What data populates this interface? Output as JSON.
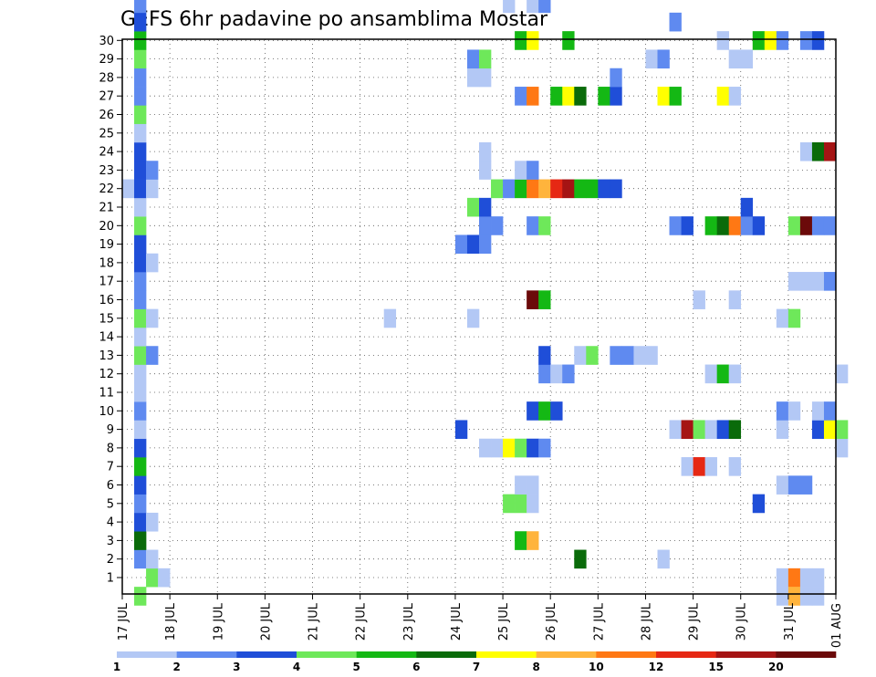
{
  "chart_data": {
    "type": "heatmap",
    "title": "GEFS 6hr padavine po ansamblima Mostar",
    "y_categories": [
      "1",
      "2",
      "3",
      "4",
      "5",
      "6",
      "7",
      "8",
      "9",
      "10",
      "11",
      "12",
      "13",
      "14",
      "15",
      "16",
      "17",
      "18",
      "19",
      "20",
      "21",
      "22",
      "23",
      "24",
      "25",
      "26",
      "27",
      "28",
      "29",
      "30"
    ],
    "x_tick_labels": [
      "17 JUL",
      "18 JUL",
      "19 JUL",
      "20 JUL",
      "21 JUL",
      "22 JUL",
      "23 JUL",
      "24 JUL",
      "25 JUL",
      "26 JUL",
      "27 JUL",
      "28 JUL",
      "29 JUL",
      "30 JUL",
      "31 JUL",
      "01 AUG"
    ],
    "x_range_days": [
      0,
      15
    ],
    "time_step_days": 0.25,
    "grid": "dotted",
    "colorbar": {
      "placement": "bottom",
      "levels": [
        "1",
        "2",
        "3",
        "4",
        "5",
        "6",
        "7",
        "8",
        "10",
        "12",
        "15",
        "20"
      ],
      "colors": [
        "#b3c8f5",
        "#5f8af0",
        "#1f4ed8",
        "#6ee85a",
        "#14b814",
        "#0a6b0a",
        "#ffff00",
        "#ffb43c",
        "#ff7814",
        "#e62814",
        "#a51414",
        "#6b0a0a"
      ]
    },
    "cells": [
      {
        "m": 0,
        "t": 0.5,
        "c": 4
      },
      {
        "m": 0,
        "t": 0.75,
        "c": 1
      },
      {
        "m": 0,
        "t": 13.75,
        "c": 1
      },
      {
        "m": 0,
        "t": 14,
        "c": 9
      },
      {
        "m": 0,
        "t": 14.25,
        "c": 1
      },
      {
        "m": 0,
        "t": 14.5,
        "c": 1
      },
      {
        "m": 1,
        "t": 0.25,
        "c": 2
      },
      {
        "m": 1,
        "t": 0.5,
        "c": 1
      },
      {
        "m": 1,
        "t": 9.5,
        "c": 6
      },
      {
        "m": 1,
        "t": 11.25,
        "c": 1
      },
      {
        "m": 2,
        "t": 0.25,
        "c": 6
      },
      {
        "m": 2,
        "t": 8.25,
        "c": 5
      },
      {
        "m": 2,
        "t": 8.5,
        "c": 8
      },
      {
        "m": 3,
        "t": 0.25,
        "c": 3
      },
      {
        "m": 3,
        "t": 0.5,
        "c": 1
      },
      {
        "m": 4,
        "t": 0.25,
        "c": 2
      },
      {
        "m": 4,
        "t": 8,
        "c": 4
      },
      {
        "m": 4,
        "t": 8.25,
        "c": 4
      },
      {
        "m": 4,
        "t": 8.5,
        "c": 1
      },
      {
        "m": 4,
        "t": 13.25,
        "c": 3
      },
      {
        "m": 5,
        "t": 0.25,
        "c": 3
      },
      {
        "m": 5,
        "t": 8.25,
        "c": 1
      },
      {
        "m": 5,
        "t": 8.5,
        "c": 1
      },
      {
        "m": 5,
        "t": 13.75,
        "c": 1
      },
      {
        "m": 5,
        "t": 14,
        "c": 2
      },
      {
        "m": 5,
        "t": 14.25,
        "c": 2
      },
      {
        "m": 6,
        "t": 0.25,
        "c": 5
      },
      {
        "m": 6,
        "t": 11.75,
        "c": 1
      },
      {
        "m": 6,
        "t": 12,
        "c": 10
      },
      {
        "m": 6,
        "t": 12.25,
        "c": 1
      },
      {
        "m": 6,
        "t": 12.75,
        "c": 1
      },
      {
        "m": 7,
        "t": 0.25,
        "c": 3
      },
      {
        "m": 7,
        "t": 7.5,
        "c": 1
      },
      {
        "m": 7,
        "t": 7.75,
        "c": 1
      },
      {
        "m": 7,
        "t": 8,
        "c": 7
      },
      {
        "m": 7,
        "t": 8.25,
        "c": 4
      },
      {
        "m": 7,
        "t": 8.5,
        "c": 3
      },
      {
        "m": 7,
        "t": 8.75,
        "c": 2
      },
      {
        "m": 7,
        "t": 15,
        "c": 1
      },
      {
        "m": 8,
        "t": 0.25,
        "c": 1
      },
      {
        "m": 8,
        "t": 7,
        "c": 3
      },
      {
        "m": 8,
        "t": 11.5,
        "c": 1
      },
      {
        "m": 8,
        "t": 11.75,
        "c": 11
      },
      {
        "m": 8,
        "t": 12,
        "c": 4
      },
      {
        "m": 8,
        "t": 12.25,
        "c": 1
      },
      {
        "m": 8,
        "t": 12.5,
        "c": 3
      },
      {
        "m": 8,
        "t": 12.75,
        "c": 6
      },
      {
        "m": 8,
        "t": 13.75,
        "c": 1
      },
      {
        "m": 8,
        "t": 14.5,
        "c": 3
      },
      {
        "m": 8,
        "t": 14.75,
        "c": 7
      },
      {
        "m": 8,
        "t": 15,
        "c": 4
      },
      {
        "m": 9,
        "t": 0.25,
        "c": 2
      },
      {
        "m": 9,
        "t": 8.5,
        "c": 3
      },
      {
        "m": 9,
        "t": 8.75,
        "c": 5
      },
      {
        "m": 9,
        "t": 9,
        "c": 3
      },
      {
        "m": 9,
        "t": 13.75,
        "c": 2
      },
      {
        "m": 9,
        "t": 14,
        "c": 1
      },
      {
        "m": 9,
        "t": 14.5,
        "c": 1
      },
      {
        "m": 9,
        "t": 14.75,
        "c": 2
      },
      {
        "m": 10,
        "t": 0.25,
        "c": 1
      },
      {
        "m": 11,
        "t": 0.25,
        "c": 1
      },
      {
        "m": 11,
        "t": 8.75,
        "c": 2
      },
      {
        "m": 11,
        "t": 9,
        "c": 1
      },
      {
        "m": 11,
        "t": 9.25,
        "c": 2
      },
      {
        "m": 11,
        "t": 12.25,
        "c": 1
      },
      {
        "m": 11,
        "t": 12.5,
        "c": 5
      },
      {
        "m": 11,
        "t": 12.75,
        "c": 1
      },
      {
        "m": 11,
        "t": 15,
        "c": 1
      },
      {
        "m": 12,
        "t": 0.25,
        "c": 4
      },
      {
        "m": 12,
        "t": 0.5,
        "c": 2
      },
      {
        "m": 12,
        "t": 8.75,
        "c": 3
      },
      {
        "m": 12,
        "t": 9.5,
        "c": 1
      },
      {
        "m": 12,
        "t": 9.75,
        "c": 4
      },
      {
        "m": 12,
        "t": 10.25,
        "c": 2
      },
      {
        "m": 12,
        "t": 10.5,
        "c": 2
      },
      {
        "m": 12,
        "t": 10.75,
        "c": 1
      },
      {
        "m": 12,
        "t": 11,
        "c": 1
      },
      {
        "m": 13,
        "t": 0.25,
        "c": 1
      },
      {
        "m": 14,
        "t": 0.25,
        "c": 4
      },
      {
        "m": 14,
        "t": 0.5,
        "c": 1
      },
      {
        "m": 14,
        "t": 5.5,
        "c": 1
      },
      {
        "m": 14,
        "t": 7.25,
        "c": 1
      },
      {
        "m": 14,
        "t": 13.75,
        "c": 1
      },
      {
        "m": 14,
        "t": 14,
        "c": 4
      },
      {
        "m": 15,
        "t": 0.25,
        "c": 2
      },
      {
        "m": 15,
        "t": 8.5,
        "c": 12
      },
      {
        "m": 15,
        "t": 8.75,
        "c": 5
      },
      {
        "m": 15,
        "t": 12,
        "c": 1
      },
      {
        "m": 15,
        "t": 12.75,
        "c": 1
      },
      {
        "m": 16,
        "t": 0.25,
        "c": 2
      },
      {
        "m": 16,
        "t": 14,
        "c": 1
      },
      {
        "m": 16,
        "t": 14.25,
        "c": 1
      },
      {
        "m": 16,
        "t": 14.5,
        "c": 1
      },
      {
        "m": 16,
        "t": 14.75,
        "c": 2
      },
      {
        "m": 17,
        "t": 0.25,
        "c": 3
      },
      {
        "m": 17,
        "t": 0.5,
        "c": 1
      },
      {
        "m": 18,
        "t": 0.25,
        "c": 3
      },
      {
        "m": 18,
        "t": 7,
        "c": 2
      },
      {
        "m": 18,
        "t": 7.25,
        "c": 3
      },
      {
        "m": 18,
        "t": 7.5,
        "c": 2
      },
      {
        "m": 19,
        "t": 0.25,
        "c": 4
      },
      {
        "m": 19,
        "t": 7.5,
        "c": 2
      },
      {
        "m": 19,
        "t": 7.75,
        "c": 2
      },
      {
        "m": 19,
        "t": 8.5,
        "c": 2
      },
      {
        "m": 19,
        "t": 8.75,
        "c": 4
      },
      {
        "m": 19,
        "t": 11.5,
        "c": 2
      },
      {
        "m": 19,
        "t": 11.75,
        "c": 3
      },
      {
        "m": 19,
        "t": 12.25,
        "c": 5
      },
      {
        "m": 19,
        "t": 12.5,
        "c": 6
      },
      {
        "m": 19,
        "t": 12.75,
        "c": 9
      },
      {
        "m": 19,
        "t": 13,
        "c": 2
      },
      {
        "m": 19,
        "t": 13.25,
        "c": 3
      },
      {
        "m": 19,
        "t": 14,
        "c": 4
      },
      {
        "m": 19,
        "t": 14.25,
        "c": 12
      },
      {
        "m": 19,
        "t": 14.5,
        "c": 2
      },
      {
        "m": 19,
        "t": 14.75,
        "c": 2
      },
      {
        "m": 20,
        "t": 0.25,
        "c": 1
      },
      {
        "m": 20,
        "t": 7.25,
        "c": 4
      },
      {
        "m": 20,
        "t": 7.5,
        "c": 3
      },
      {
        "m": 20,
        "t": 13,
        "c": 3
      },
      {
        "m": 21,
        "t": 0,
        "c": 1
      },
      {
        "m": 21,
        "t": 0.25,
        "c": 3
      },
      {
        "m": 21,
        "t": 0.5,
        "c": 1
      },
      {
        "m": 21,
        "t": 7.75,
        "c": 4
      },
      {
        "m": 21,
        "t": 8,
        "c": 2
      },
      {
        "m": 21,
        "t": 8.25,
        "c": 5
      },
      {
        "m": 21,
        "t": 8.5,
        "c": 9
      },
      {
        "m": 21,
        "t": 8.75,
        "c": 8
      },
      {
        "m": 21,
        "t": 9,
        "c": 10
      },
      {
        "m": 21,
        "t": 9.25,
        "c": 11
      },
      {
        "m": 21,
        "t": 9.5,
        "c": 5
      },
      {
        "m": 21,
        "t": 9.75,
        "c": 5
      },
      {
        "m": 21,
        "t": 10,
        "c": 3
      },
      {
        "m": 21,
        "t": 10.25,
        "c": 3
      },
      {
        "m": 22,
        "t": 0.25,
        "c": 3
      },
      {
        "m": 22,
        "t": 0.5,
        "c": 2
      },
      {
        "m": 22,
        "t": 7.5,
        "c": 1
      },
      {
        "m": 22,
        "t": 8.25,
        "c": 1
      },
      {
        "m": 22,
        "t": 8.5,
        "c": 2
      },
      {
        "m": 23,
        "t": 0.25,
        "c": 3
      },
      {
        "m": 23,
        "t": 7.5,
        "c": 1
      },
      {
        "m": 23,
        "t": 14.25,
        "c": 1
      },
      {
        "m": 23,
        "t": 14.5,
        "c": 6
      },
      {
        "m": 23,
        "t": 14.75,
        "c": 11
      },
      {
        "m": 24,
        "t": 0.25,
        "c": 1
      },
      {
        "m": 25,
        "t": 0.25,
        "c": 4
      },
      {
        "m": 26,
        "t": 0.25,
        "c": 2
      },
      {
        "m": 26,
        "t": 8.25,
        "c": 2
      },
      {
        "m": 26,
        "t": 8.5,
        "c": 9
      },
      {
        "m": 26,
        "t": 9,
        "c": 5
      },
      {
        "m": 26,
        "t": 9.25,
        "c": 7
      },
      {
        "m": 26,
        "t": 9.5,
        "c": 6
      },
      {
        "m": 26,
        "t": 10,
        "c": 5
      },
      {
        "m": 26,
        "t": 10.25,
        "c": 3
      },
      {
        "m": 26,
        "t": 11.25,
        "c": 7
      },
      {
        "m": 26,
        "t": 11.5,
        "c": 5
      },
      {
        "m": 26,
        "t": 12.5,
        "c": 7
      },
      {
        "m": 26,
        "t": 12.75,
        "c": 1
      },
      {
        "m": 27,
        "t": 0.25,
        "c": 2
      },
      {
        "m": 27,
        "t": 7.25,
        "c": 1
      },
      {
        "m": 27,
        "t": 7.5,
        "c": 1
      },
      {
        "m": 27,
        "t": 10.25,
        "c": 2
      },
      {
        "m": 28,
        "t": 0.25,
        "c": 4
      },
      {
        "m": 28,
        "t": 7.25,
        "c": 2
      },
      {
        "m": 28,
        "t": 7.5,
        "c": 4
      },
      {
        "m": 28,
        "t": 11,
        "c": 1
      },
      {
        "m": 28,
        "t": 11.25,
        "c": 2
      },
      {
        "m": 28,
        "t": 12.75,
        "c": 1
      },
      {
        "m": 28,
        "t": 13,
        "c": 1
      },
      {
        "m": 29,
        "t": 0.25,
        "c": 5
      },
      {
        "m": 29,
        "t": 8.25,
        "c": 5
      },
      {
        "m": 29,
        "t": 8.5,
        "c": 7
      },
      {
        "m": 29,
        "t": 9.25,
        "c": 5
      },
      {
        "m": 29,
        "t": 12.5,
        "c": 1
      },
      {
        "m": 29,
        "t": 13.25,
        "c": 5
      },
      {
        "m": 29,
        "t": 13.5,
        "c": 7
      },
      {
        "m": 29,
        "t": 13.75,
        "c": 2
      },
      {
        "m": 29,
        "t": 14.25,
        "c": 2
      },
      {
        "m": 29,
        "t": 14.5,
        "c": 3
      },
      {
        "m": 30,
        "t": 0.25,
        "c": 3
      },
      {
        "m": 30,
        "t": 11.5,
        "c": 2
      },
      {
        "m": 31,
        "t": 0.25,
        "c": 2
      },
      {
        "m": 31,
        "t": 8,
        "c": 1
      },
      {
        "m": 31,
        "t": 8.5,
        "c": 1
      },
      {
        "m": 31,
        "t": 8.75,
        "c": 2
      },
      {
        "m": -1,
        "t": 0.25,
        "c": 4
      },
      {
        "m": -1,
        "t": 13.75,
        "c": 1
      },
      {
        "m": -1,
        "t": 14,
        "c": 8
      },
      {
        "m": -1,
        "t": 14.25,
        "c": 1
      },
      {
        "m": -1,
        "t": 14.5,
        "c": 1
      }
    ]
  }
}
